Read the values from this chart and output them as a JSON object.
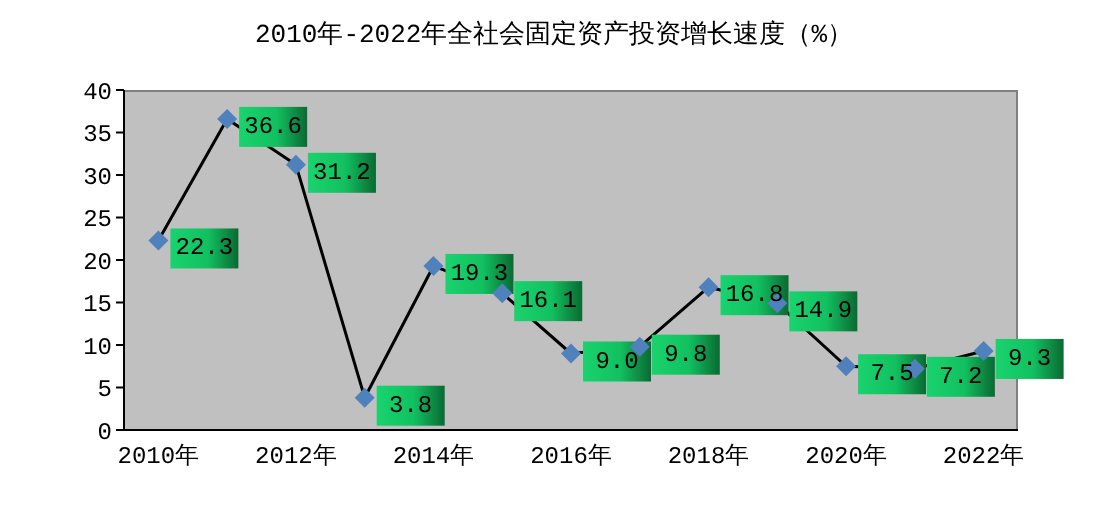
{
  "chart_data": {
    "type": "line",
    "title": "2010年-2022年全社会固定资产投资增长速度（%）",
    "categories": [
      "2010年",
      null,
      "2012年",
      null,
      "2014年",
      null,
      "2016年",
      null,
      "2018年",
      null,
      "2020年",
      null,
      "2022年"
    ],
    "series": [
      {
        "color": "#4f81bd",
        "values": [
          22.3,
          36.6,
          31.2,
          3.8,
          19.3,
          16.1,
          9.0,
          9.8,
          16.8,
          14.9,
          7.5,
          7.2,
          9.3
        ]
      }
    ],
    "ylim": [
      0,
      40
    ],
    "yticks": [
      0,
      5,
      10,
      15,
      20,
      25,
      30,
      35,
      40
    ],
    "marker": "diamond",
    "line_style": "solid",
    "value_labels": [
      "22.3",
      "36.6",
      "31.2",
      "3.8",
      "19.3",
      "16.1",
      "9.0",
      "9.8",
      "16.8",
      "14.9",
      "7.5",
      "7.2",
      "9.3"
    ]
  }
}
